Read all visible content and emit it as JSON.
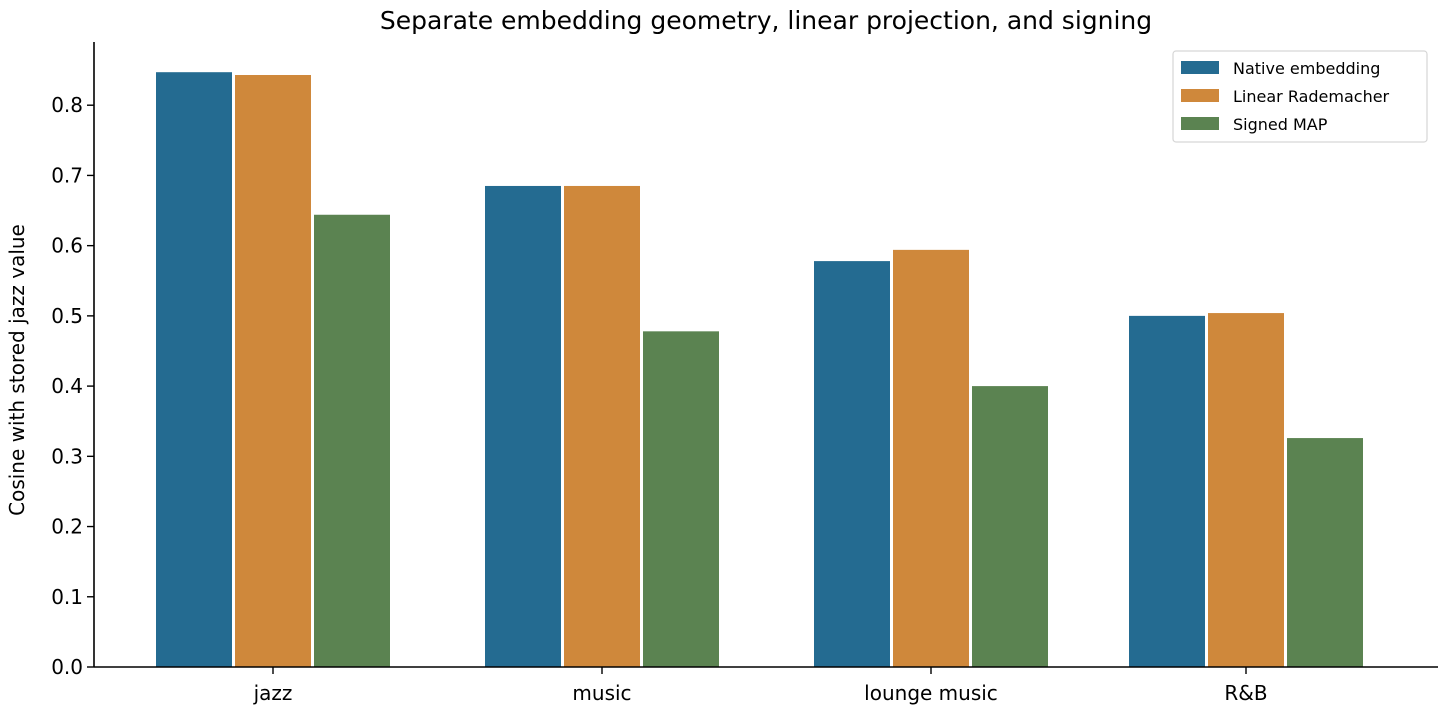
{
  "chart_data": {
    "type": "bar",
    "title": "Separate embedding geometry, linear projection, and signing",
    "xlabel": "",
    "ylabel": "Cosine with stored jazz value",
    "ylim": [
      0,
      0.89
    ],
    "yticks": [
      "0.0",
      "0.1",
      "0.2",
      "0.3",
      "0.4",
      "0.5",
      "0.6",
      "0.7",
      "0.8"
    ],
    "categories": [
      "jazz",
      "music",
      "lounge music",
      "R&B"
    ],
    "series": [
      {
        "name": "Native embedding",
        "color": "#246b91",
        "values": [
          0.847,
          0.685,
          0.578,
          0.5
        ]
      },
      {
        "name": "Linear Rademacher",
        "color": "#cf883b",
        "values": [
          0.843,
          0.685,
          0.594,
          0.504
        ]
      },
      {
        "name": "Signed MAP",
        "color": "#5b8351",
        "values": [
          0.644,
          0.478,
          0.4,
          0.326
        ]
      }
    ],
    "grid": false,
    "legend_position": "top-right"
  }
}
